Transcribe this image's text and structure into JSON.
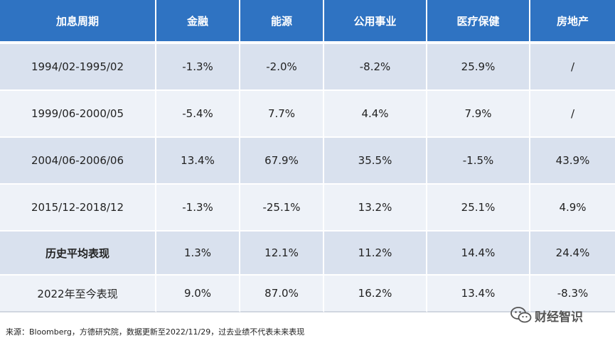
{
  "table": {
    "headers": [
      "加息周期",
      "金融",
      "能源",
      "公用事业",
      "医疗保健",
      "房地产"
    ],
    "rows": [
      {
        "cells": [
          "1994/02-1995/02",
          "-1.3%",
          "-2.0%",
          "-8.2%",
          "25.9%",
          "/"
        ]
      },
      {
        "cells": [
          "1999/06-2000/05",
          "-5.4%",
          "7.7%",
          "4.4%",
          "7.9%",
          "/"
        ]
      },
      {
        "cells": [
          "2004/06-2006/06",
          "13.4%",
          "67.9%",
          "35.5%",
          "-1.5%",
          "43.9%"
        ]
      },
      {
        "cells": [
          "2015/12-2018/12",
          "-1.3%",
          "-25.1%",
          "13.2%",
          "25.1%",
          "4.9%"
        ]
      },
      {
        "cells": [
          "历史平均表现",
          "1.3%",
          "12.1%",
          "11.2%",
          "14.4%",
          "24.4%"
        ]
      },
      {
        "cells": [
          "2022年至今表现",
          "9.0%",
          "87.0%",
          "16.2%",
          "13.4%",
          "-8.3%"
        ]
      }
    ]
  },
  "colors": {
    "header_bg": "#2f73c2",
    "positive": "#c00000",
    "negative": "#1fa64b"
  },
  "source_note": "来源：Bloomberg，方德研究院，数据更新至2022/11/29，过去业绩不代表未来表现",
  "watermark": {
    "icon": "wechat-icon",
    "text": "财经智识"
  }
}
